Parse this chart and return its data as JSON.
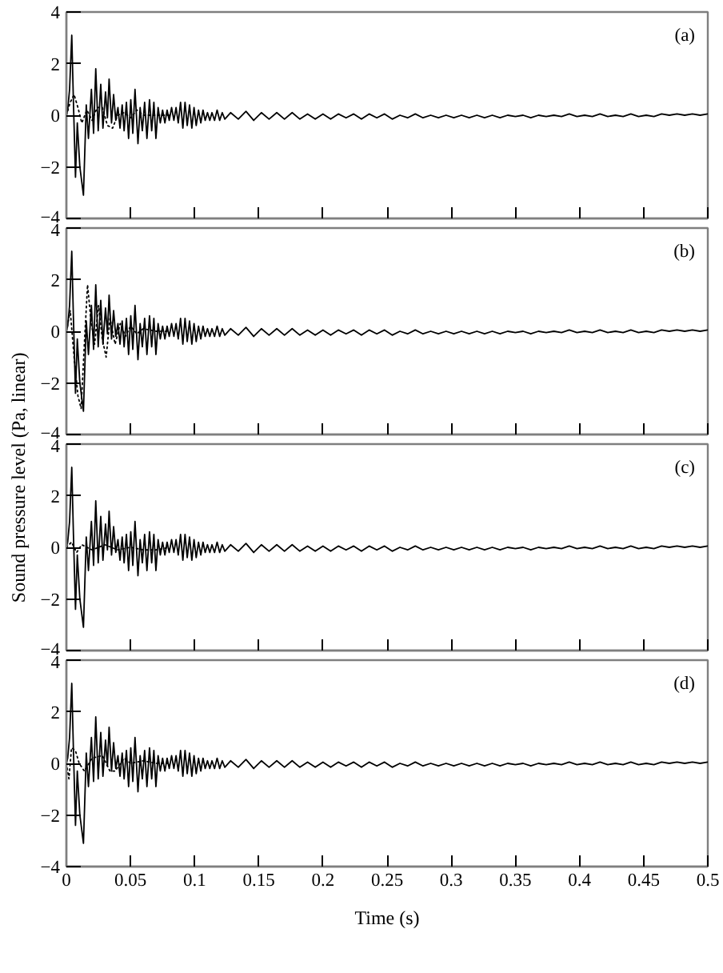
{
  "chart_data": [
    {
      "type": "line",
      "annotations": [
        "(a)"
      ],
      "xlim": [
        0,
        0.5
      ],
      "xticks": [
        0,
        0.05,
        0.1,
        0.15,
        0.2,
        0.25,
        0.3,
        0.35,
        0.4,
        0.45,
        0.5
      ],
      "ylim": [
        -4,
        4
      ],
      "yticks": [
        4,
        2,
        0,
        -2,
        -4
      ],
      "tick_labels": "y",
      "x": [
        0,
        0.001,
        0.0025,
        0.0042,
        0.0055,
        0.0071,
        0.0085,
        0.0105,
        0.0133,
        0.0155,
        0.0172,
        0.0195,
        0.0212,
        0.0229,
        0.0248,
        0.0268,
        0.0285,
        0.0305,
        0.032,
        0.0333,
        0.0352,
        0.0368,
        0.0385,
        0.0402,
        0.0418,
        0.0435,
        0.045,
        0.0468,
        0.0485,
        0.0502,
        0.0518,
        0.0535,
        0.0558,
        0.0575,
        0.0592,
        0.061,
        0.0628,
        0.0648,
        0.0665,
        0.0682,
        0.0698,
        0.0715,
        0.0732,
        0.075,
        0.0768,
        0.0785,
        0.0802,
        0.082,
        0.0838,
        0.0855,
        0.0872,
        0.089,
        0.0908,
        0.0925,
        0.0942,
        0.096,
        0.0978,
        0.0995,
        0.1012,
        0.103,
        0.1048,
        0.1065,
        0.1082,
        0.11,
        0.1118,
        0.1135,
        0.1155,
        0.1175,
        0.1195,
        0.1215,
        0.1235,
        0.128,
        0.134,
        0.14,
        0.146,
        0.152,
        0.158,
        0.164,
        0.17,
        0.176,
        0.182,
        0.188,
        0.194,
        0.2,
        0.206,
        0.212,
        0.218,
        0.224,
        0.23,
        0.236,
        0.242,
        0.248,
        0.254,
        0.26,
        0.266,
        0.272,
        0.278,
        0.284,
        0.29,
        0.296,
        0.302,
        0.308,
        0.314,
        0.32,
        0.326,
        0.332,
        0.338,
        0.344,
        0.35,
        0.356,
        0.362,
        0.368,
        0.374,
        0.38,
        0.386,
        0.392,
        0.398,
        0.404,
        0.41,
        0.416,
        0.422,
        0.428,
        0.434,
        0.44,
        0.446,
        0.452,
        0.458,
        0.464,
        0.47,
        0.476,
        0.482,
        0.488,
        0.494,
        0.5
      ],
      "series": [
        {
          "color": "#000000",
          "line_style": "solid",
          "values": [
            0,
            0.2,
            1,
            3.1,
            0.5,
            -2.4,
            -0.3,
            -2,
            -3.1,
            0.4,
            -0.9,
            1,
            -0.7,
            1.8,
            -0.6,
            1.2,
            -0.5,
            0.9,
            -0.1,
            1.4,
            -0.3,
            0.8,
            -0.2,
            0.3,
            -0.5,
            0.4,
            -0.6,
            0.5,
            -0.9,
            0.6,
            -0.7,
            1,
            -1.1,
            0.3,
            -0.6,
            0.5,
            -0.9,
            0.6,
            -0.6,
            0.5,
            -0.9,
            0.3,
            -0.3,
            0.2,
            -0.3,
            0.2,
            -0.2,
            0.3,
            -0.2,
            0.3,
            -0.3,
            0.5,
            -0.5,
            0.5,
            -0.4,
            0.4,
            -0.5,
            0.3,
            -0.4,
            0.2,
            -0.3,
            0.2,
            -0.2,
            0.1,
            -0.2,
            0.1,
            -0.2,
            0.2,
            -0.2,
            0.1,
            -0.15,
            0.1,
            -0.15,
            0.15,
            -0.2,
            0.1,
            -0.15,
            0.1,
            -0.15,
            0.1,
            -0.15,
            0.05,
            -0.15,
            0.05,
            -0.15,
            0.05,
            -0.1,
            0.05,
            -0.15,
            0.05,
            -0.1,
            0.05,
            -0.15,
            0,
            -0.1,
            0.05,
            -0.1,
            0,
            -0.1,
            0,
            -0.1,
            0,
            -0.1,
            0,
            -0.1,
            0,
            -0.1,
            0,
            -0.05,
            0,
            -0.1,
            0,
            -0.05,
            0,
            -0.05,
            0.05,
            -0.05,
            0,
            -0.05,
            0.05,
            -0.05,
            0,
            -0.05,
            0.05,
            -0.05,
            0,
            -0.05,
            0.05,
            0,
            0.05,
            0,
            0.05,
            0,
            0.05
          ]
        },
        {
          "color": "#000000",
          "line_style": "dotted",
          "x": [
            0,
            0.003,
            0.006,
            0.009,
            0.012,
            0.016,
            0.02,
            0.024,
            0.028,
            0.032,
            0.036,
            0.04,
            0.045,
            0.05,
            0.055,
            0.06,
            0.07,
            0.08
          ],
          "values": [
            0,
            0.5,
            0.8,
            0.3,
            -0.3,
            0.2,
            -0.2,
            0.3,
            0.3,
            -0.4,
            -0.5,
            0,
            0.1,
            -0.1,
            0.2,
            0,
            0,
            0
          ]
        }
      ]
    },
    {
      "type": "line",
      "annotations": [
        "(b)"
      ],
      "ylabel": "Sound pressure level (Pa, linear)",
      "xlim": [
        0,
        0.5
      ],
      "xticks": [
        0,
        0.05,
        0.1,
        0.15,
        0.2,
        0.25,
        0.3,
        0.35,
        0.4,
        0.45,
        0.5
      ],
      "ylim": [
        -4,
        4
      ],
      "yticks": [
        4,
        2,
        0,
        -2,
        -4
      ],
      "tick_labels": "y",
      "x": [
        0,
        0.001,
        0.0025,
        0.0042,
        0.0055,
        0.0071,
        0.0085,
        0.0105,
        0.0133,
        0.0155,
        0.0172,
        0.0195,
        0.0212,
        0.0229,
        0.0248,
        0.0268,
        0.0285,
        0.0305,
        0.032,
        0.0333,
        0.0352,
        0.0368,
        0.0385,
        0.0402,
        0.0418,
        0.0435,
        0.045,
        0.0468,
        0.0485,
        0.0502,
        0.0518,
        0.0535,
        0.0558,
        0.0575,
        0.0592,
        0.061,
        0.0628,
        0.0648,
        0.0665,
        0.0682,
        0.0698,
        0.0715,
        0.0732,
        0.075,
        0.0768,
        0.0785,
        0.0802,
        0.082,
        0.0838,
        0.0855,
        0.0872,
        0.089,
        0.0908,
        0.0925,
        0.0942,
        0.096,
        0.0978,
        0.0995,
        0.1012,
        0.103,
        0.1048,
        0.1065,
        0.1082,
        0.11,
        0.1118,
        0.1135,
        0.1155,
        0.1175,
        0.1195,
        0.1215,
        0.1235,
        0.128,
        0.134,
        0.14,
        0.146,
        0.152,
        0.158,
        0.164,
        0.17,
        0.176,
        0.182,
        0.188,
        0.194,
        0.2,
        0.206,
        0.212,
        0.218,
        0.224,
        0.23,
        0.236,
        0.242,
        0.248,
        0.254,
        0.26,
        0.266,
        0.272,
        0.278,
        0.284,
        0.29,
        0.296,
        0.302,
        0.308,
        0.314,
        0.32,
        0.326,
        0.332,
        0.338,
        0.344,
        0.35,
        0.356,
        0.362,
        0.368,
        0.374,
        0.38,
        0.386,
        0.392,
        0.398,
        0.404,
        0.41,
        0.416,
        0.422,
        0.428,
        0.434,
        0.44,
        0.446,
        0.452,
        0.458,
        0.464,
        0.47,
        0.476,
        0.482,
        0.488,
        0.494,
        0.5
      ],
      "series": [
        {
          "color": "#000000",
          "line_style": "solid",
          "values": [
            0,
            0.2,
            1,
            3.1,
            0.5,
            -2.4,
            -0.3,
            -2,
            -3.1,
            0.4,
            -0.9,
            1,
            -0.7,
            1.8,
            -0.6,
            1.2,
            -0.5,
            0.9,
            -0.1,
            1.4,
            -0.3,
            0.8,
            -0.2,
            0.3,
            -0.5,
            0.4,
            -0.6,
            0.5,
            -0.9,
            0.6,
            -0.7,
            1,
            -1.1,
            0.3,
            -0.6,
            0.5,
            -0.9,
            0.6,
            -0.6,
            0.5,
            -0.9,
            0.3,
            -0.3,
            0.2,
            -0.3,
            0.2,
            -0.2,
            0.3,
            -0.2,
            0.3,
            -0.3,
            0.5,
            -0.5,
            0.5,
            -0.4,
            0.4,
            -0.5,
            0.3,
            -0.4,
            0.2,
            -0.3,
            0.2,
            -0.2,
            0.1,
            -0.2,
            0.1,
            -0.2,
            0.2,
            -0.2,
            0.1,
            -0.15,
            0.1,
            -0.15,
            0.15,
            -0.2,
            0.1,
            -0.15,
            0.1,
            -0.15,
            0.1,
            -0.15,
            0.05,
            -0.15,
            0.05,
            -0.15,
            0.05,
            -0.1,
            0.05,
            -0.15,
            0.05,
            -0.1,
            0.05,
            -0.15,
            0,
            -0.1,
            0.05,
            -0.1,
            0,
            -0.1,
            0,
            -0.1,
            0,
            -0.1,
            0,
            -0.1,
            0,
            -0.1,
            0,
            -0.05,
            0,
            -0.1,
            0,
            -0.05,
            0,
            -0.05,
            0.05,
            -0.05,
            0,
            -0.05,
            0.05,
            -0.05,
            0,
            -0.05,
            0.05,
            -0.05,
            0,
            -0.05,
            0.05,
            0,
            0.05,
            0,
            0.05,
            0,
            0.05
          ]
        },
        {
          "color": "#000000",
          "line_style": "dotted",
          "x": [
            0,
            0.003,
            0.006,
            0.009,
            0.0115,
            0.014,
            0.0165,
            0.019,
            0.022,
            0.025,
            0.028,
            0.031,
            0.034,
            0.038,
            0.042,
            0.046,
            0.05,
            0.055,
            0.06,
            0.07,
            0.08
          ],
          "values": [
            0,
            0.8,
            -1,
            -2.5,
            -3,
            -0.5,
            1.8,
            0.5,
            -0.5,
            1,
            -0.3,
            -1,
            0.5,
            -0.5,
            0.3,
            -0.2,
            0.2,
            -0.1,
            0.1,
            0,
            0
          ]
        }
      ]
    },
    {
      "type": "line",
      "annotations": [
        "(c)"
      ],
      "xlim": [
        0,
        0.5
      ],
      "xticks": [
        0,
        0.05,
        0.1,
        0.15,
        0.2,
        0.25,
        0.3,
        0.35,
        0.4,
        0.45,
        0.5
      ],
      "ylim": [
        -4,
        4
      ],
      "yticks": [
        4,
        2,
        0,
        -2,
        -4
      ],
      "tick_labels": "y",
      "x": [
        0,
        0.001,
        0.0025,
        0.0042,
        0.0055,
        0.0071,
        0.0085,
        0.0105,
        0.0133,
        0.0155,
        0.0172,
        0.0195,
        0.0212,
        0.0229,
        0.0248,
        0.0268,
        0.0285,
        0.0305,
        0.032,
        0.0333,
        0.0352,
        0.0368,
        0.0385,
        0.0402,
        0.0418,
        0.0435,
        0.045,
        0.0468,
        0.0485,
        0.0502,
        0.0518,
        0.0535,
        0.0558,
        0.0575,
        0.0592,
        0.061,
        0.0628,
        0.0648,
        0.0665,
        0.0682,
        0.0698,
        0.0715,
        0.0732,
        0.075,
        0.0768,
        0.0785,
        0.0802,
        0.082,
        0.0838,
        0.0855,
        0.0872,
        0.089,
        0.0908,
        0.0925,
        0.0942,
        0.096,
        0.0978,
        0.0995,
        0.1012,
        0.103,
        0.1048,
        0.1065,
        0.1082,
        0.11,
        0.1118,
        0.1135,
        0.1155,
        0.1175,
        0.1195,
        0.1215,
        0.1235,
        0.128,
        0.134,
        0.14,
        0.146,
        0.152,
        0.158,
        0.164,
        0.17,
        0.176,
        0.182,
        0.188,
        0.194,
        0.2,
        0.206,
        0.212,
        0.218,
        0.224,
        0.23,
        0.236,
        0.242,
        0.248,
        0.254,
        0.26,
        0.266,
        0.272,
        0.278,
        0.284,
        0.29,
        0.296,
        0.302,
        0.308,
        0.314,
        0.32,
        0.326,
        0.332,
        0.338,
        0.344,
        0.35,
        0.356,
        0.362,
        0.368,
        0.374,
        0.38,
        0.386,
        0.392,
        0.398,
        0.404,
        0.41,
        0.416,
        0.422,
        0.428,
        0.434,
        0.44,
        0.446,
        0.452,
        0.458,
        0.464,
        0.47,
        0.476,
        0.482,
        0.488,
        0.494,
        0.5
      ],
      "series": [
        {
          "color": "#000000",
          "line_style": "solid",
          "values": [
            0,
            0.2,
            1,
            3.1,
            0.5,
            -2.4,
            -0.3,
            -2,
            -3.1,
            0.4,
            -0.9,
            1,
            -0.7,
            1.8,
            -0.6,
            1.2,
            -0.5,
            0.9,
            -0.1,
            1.4,
            -0.3,
            0.8,
            -0.2,
            0.3,
            -0.5,
            0.4,
            -0.6,
            0.5,
            -0.9,
            0.6,
            -0.7,
            1,
            -1.1,
            0.3,
            -0.6,
            0.5,
            -0.9,
            0.6,
            -0.6,
            0.5,
            -0.9,
            0.3,
            -0.3,
            0.2,
            -0.3,
            0.2,
            -0.2,
            0.3,
            -0.2,
            0.3,
            -0.3,
            0.5,
            -0.5,
            0.5,
            -0.4,
            0.4,
            -0.5,
            0.3,
            -0.4,
            0.2,
            -0.3,
            0.2,
            -0.2,
            0.1,
            -0.2,
            0.1,
            -0.2,
            0.2,
            -0.2,
            0.1,
            -0.15,
            0.1,
            -0.15,
            0.15,
            -0.2,
            0.1,
            -0.15,
            0.1,
            -0.15,
            0.1,
            -0.15,
            0.05,
            -0.15,
            0.05,
            -0.15,
            0.05,
            -0.1,
            0.05,
            -0.15,
            0.05,
            -0.1,
            0.05,
            -0.15,
            0,
            -0.1,
            0.05,
            -0.1,
            0,
            -0.1,
            0,
            -0.1,
            0,
            -0.1,
            0,
            -0.1,
            0,
            -0.1,
            0,
            -0.05,
            0,
            -0.1,
            0,
            -0.05,
            0,
            -0.05,
            0.05,
            -0.05,
            0,
            -0.05,
            0.05,
            -0.05,
            0,
            -0.05,
            0.05,
            -0.05,
            0,
            -0.05,
            0.05,
            0,
            0.05,
            0,
            0.05,
            0,
            0.05
          ]
        },
        {
          "color": "#000000",
          "line_style": "dotted",
          "x": [
            0,
            0.004,
            0.008,
            0.012,
            0.02,
            0.03,
            0.04,
            0.05,
            0.06,
            0.07,
            0.08
          ],
          "values": [
            0,
            0.2,
            -0.2,
            0.1,
            -0.1,
            0.1,
            -0.1,
            0,
            -0.1,
            -0.1,
            0
          ]
        }
      ]
    },
    {
      "type": "line",
      "annotations": [
        "(d)"
      ],
      "xlabel": "Time (s)",
      "xlim": [
        0,
        0.5
      ],
      "xticks": [
        0,
        0.05,
        0.1,
        0.15,
        0.2,
        0.25,
        0.3,
        0.35,
        0.4,
        0.45,
        0.5
      ],
      "ylim": [
        -4,
        4
      ],
      "yticks": [
        4,
        2,
        0,
        -2,
        -4
      ],
      "x": [
        0,
        0.001,
        0.0025,
        0.0042,
        0.0055,
        0.0071,
        0.0085,
        0.0105,
        0.0133,
        0.0155,
        0.0172,
        0.0195,
        0.0212,
        0.0229,
        0.0248,
        0.0268,
        0.0285,
        0.0305,
        0.032,
        0.0333,
        0.0352,
        0.0368,
        0.0385,
        0.0402,
        0.0418,
        0.0435,
        0.045,
        0.0468,
        0.0485,
        0.0502,
        0.0518,
        0.0535,
        0.0558,
        0.0575,
        0.0592,
        0.061,
        0.0628,
        0.0648,
        0.0665,
        0.0682,
        0.0698,
        0.0715,
        0.0732,
        0.075,
        0.0768,
        0.0785,
        0.0802,
        0.082,
        0.0838,
        0.0855,
        0.0872,
        0.089,
        0.0908,
        0.0925,
        0.0942,
        0.096,
        0.0978,
        0.0995,
        0.1012,
        0.103,
        0.1048,
        0.1065,
        0.1082,
        0.11,
        0.1118,
        0.1135,
        0.1155,
        0.1175,
        0.1195,
        0.1215,
        0.1235,
        0.128,
        0.134,
        0.14,
        0.146,
        0.152,
        0.158,
        0.164,
        0.17,
        0.176,
        0.182,
        0.188,
        0.194,
        0.2,
        0.206,
        0.212,
        0.218,
        0.224,
        0.23,
        0.236,
        0.242,
        0.248,
        0.254,
        0.26,
        0.266,
        0.272,
        0.278,
        0.284,
        0.29,
        0.296,
        0.302,
        0.308,
        0.314,
        0.32,
        0.326,
        0.332,
        0.338,
        0.344,
        0.35,
        0.356,
        0.362,
        0.368,
        0.374,
        0.38,
        0.386,
        0.392,
        0.398,
        0.404,
        0.41,
        0.416,
        0.422,
        0.428,
        0.434,
        0.44,
        0.446,
        0.452,
        0.458,
        0.464,
        0.47,
        0.476,
        0.482,
        0.488,
        0.494,
        0.5
      ],
      "series": [
        {
          "color": "#000000",
          "line_style": "solid",
          "values": [
            0,
            0.2,
            1,
            3.1,
            0.5,
            -2.4,
            -0.3,
            -2,
            -3.1,
            0.4,
            -0.9,
            1,
            -0.7,
            1.8,
            -0.6,
            1.2,
            -0.5,
            0.9,
            -0.1,
            1.4,
            -0.3,
            0.8,
            -0.2,
            0.3,
            -0.5,
            0.4,
            -0.6,
            0.5,
            -0.9,
            0.6,
            -0.7,
            1,
            -1.1,
            0.3,
            -0.6,
            0.5,
            -0.9,
            0.6,
            -0.6,
            0.5,
            -0.9,
            0.3,
            -0.3,
            0.2,
            -0.3,
            0.2,
            -0.2,
            0.3,
            -0.2,
            0.3,
            -0.3,
            0.5,
            -0.5,
            0.5,
            -0.4,
            0.4,
            -0.5,
            0.3,
            -0.4,
            0.2,
            -0.3,
            0.2,
            -0.2,
            0.1,
            -0.2,
            0.1,
            -0.2,
            0.2,
            -0.2,
            0.1,
            -0.15,
            0.1,
            -0.15,
            0.15,
            -0.2,
            0.1,
            -0.15,
            0.1,
            -0.15,
            0.1,
            -0.15,
            0.05,
            -0.15,
            0.05,
            -0.15,
            0.05,
            -0.1,
            0.05,
            -0.15,
            0.05,
            -0.1,
            0.05,
            -0.15,
            0,
            -0.1,
            0.05,
            -0.1,
            0,
            -0.1,
            0,
            -0.1,
            0,
            -0.1,
            0,
            -0.1,
            0,
            -0.1,
            0,
            -0.05,
            0,
            -0.1,
            0,
            -0.05,
            0,
            -0.05,
            0.05,
            -0.05,
            0,
            -0.05,
            0.05,
            -0.05,
            0,
            -0.05,
            0.05,
            -0.05,
            0,
            -0.05,
            0.05,
            0,
            0.05,
            0,
            0.05,
            0,
            0.05
          ]
        },
        {
          "color": "#000000",
          "line_style": "dotted",
          "x": [
            0,
            0.002,
            0.004,
            0.007,
            0.01,
            0.014,
            0.02,
            0.028,
            0.034,
            0.038,
            0.045,
            0.05,
            0.06,
            0.07,
            0.08
          ],
          "values": [
            0,
            -0.6,
            0.6,
            0.5,
            0,
            -0.3,
            0.2,
            0.3,
            -0.3,
            -0.3,
            0.2,
            0,
            0.1,
            0,
            0
          ]
        }
      ]
    }
  ]
}
